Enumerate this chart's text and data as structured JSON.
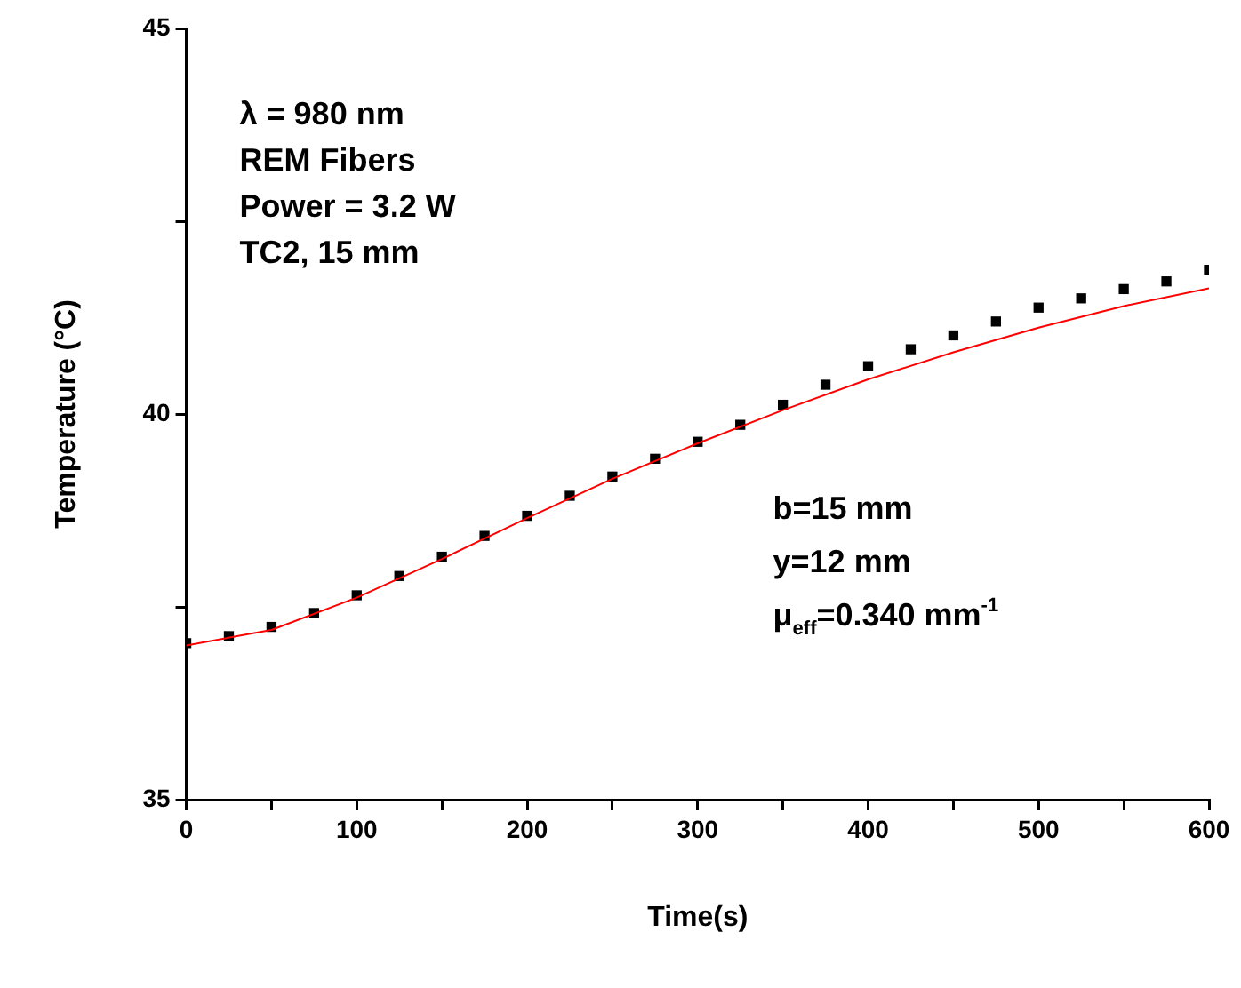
{
  "chart_data": {
    "type": "scatter",
    "xlabel": "Time(s)",
    "ylabel": "Temperature (°C)",
    "xlim": [
      0,
      600
    ],
    "xticks": [
      0,
      {
        "value": 50,
        "label": null
      },
      100,
      {
        "value": 150,
        "label": null
      },
      200,
      {
        "value": 250,
        "label": null
      },
      300,
      {
        "value": 350,
        "label": null
      },
      400,
      {
        "value": 450,
        "label": null
      },
      500,
      {
        "value": 550,
        "label": null
      },
      600
    ],
    "ylim": [
      35,
      45
    ],
    "yticks": [
      35,
      {
        "value": 37.5,
        "label": null
      },
      40,
      {
        "value": 42.5,
        "label": null
      },
      45
    ],
    "grid": false,
    "legend": false,
    "series": [
      {
        "color": "#000000",
        "marker": "square",
        "x": [
          0,
          25,
          50,
          75,
          100,
          125,
          150,
          175,
          200,
          225,
          250,
          275,
          300,
          325,
          350,
          375,
          400,
          425,
          450,
          475,
          500,
          525,
          550,
          575,
          600
        ],
        "values": [
          37.03,
          37.12,
          37.24,
          37.42,
          37.65,
          37.9,
          38.15,
          38.42,
          38.68,
          38.94,
          39.19,
          39.42,
          39.64,
          39.86,
          40.12,
          40.38,
          40.62,
          40.84,
          41.02,
          41.2,
          41.38,
          41.5,
          41.62,
          41.72,
          41.87
        ]
      },
      {
        "type": "line",
        "color": "#ff0000",
        "marker": "none",
        "line_style": "solid",
        "x": [
          0,
          50,
          100,
          150,
          200,
          250,
          300,
          350,
          400,
          450,
          500,
          550,
          600
        ],
        "values": [
          37.0,
          37.2,
          37.62,
          38.12,
          38.65,
          39.16,
          39.62,
          40.05,
          40.45,
          40.8,
          41.12,
          41.4,
          41.63
        ]
      }
    ],
    "annotations": [
      "λ = 980 nm",
      "REM Fibers",
      "Power = 3.2 W",
      "TC2, 15 mm",
      "b=15 mm",
      "y=12 mm",
      "μ$_{eff}$=0.340 mm$^{-1}$"
    ]
  }
}
